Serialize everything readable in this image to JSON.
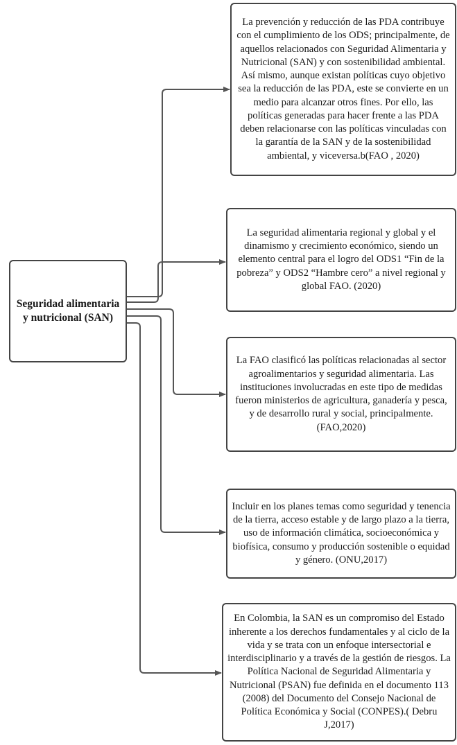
{
  "root": {
    "label": "Seguridad alimentaria y nutricional (SAN)"
  },
  "boxes": [
    {
      "text": "La prevención y reducción de las PDA contribuye con el cumplimiento de los ODS; principalmente, de aquellos relacionados con Seguridad Alimentaria y Nutricional (SAN) y con sostenibilidad ambiental. Así mismo, aunque existan políticas cuyo objetivo sea la reducción de las PDA, este se convierte en un medio para alcanzar otros fines. Por ello, las políticas generadas para hacer frente a las PDA deben relacionarse con las políticas vinculadas con la garantía de la SAN y de la sostenibilidad ambiental, y viceversa.b(FAO , 2020)"
    },
    {
      "text": "La seguridad alimentaria regional y global y el dinamismo y crecimiento económico, siendo un elemento central para el logro del ODS1 “Fin de la pobreza” y ODS2 “Hambre cero” a nivel regional y global FAO. (2020)"
    },
    {
      "text": "La FAO clasificó las políticas relacionadas al sector agroalimentarios y seguridad alimentaria. Las instituciones involucradas en este tipo de medidas fueron ministerios de agricultura, ganadería y pesca, y de desarrollo rural y social, principalmente. (FAO,2020)"
    },
    {
      "text": "Incluir en los planes temas como seguridad y tenencia de la tierra, acceso estable y de largo plazo a la tierra, uso de información climática, socioeconómica y biofísica, consumo y producción sostenible o equidad y género. (ONU,2017)"
    },
    {
      "text": "En Colombia, la SAN es un compromiso del Estado inherente a los derechos fundamentales y al ciclo de la vida y se trata con un enfoque intersectorial e interdisciplinario y a través de la gestión de riesgos. La Política Nacional de Seguridad Alimentaria y Nutricional (PSAN) fue definida en el documento 113 (2008) del Documento del Consejo Nacional de Política Económica y Social (CONPES).( Debru J,2017)"
    }
  ]
}
